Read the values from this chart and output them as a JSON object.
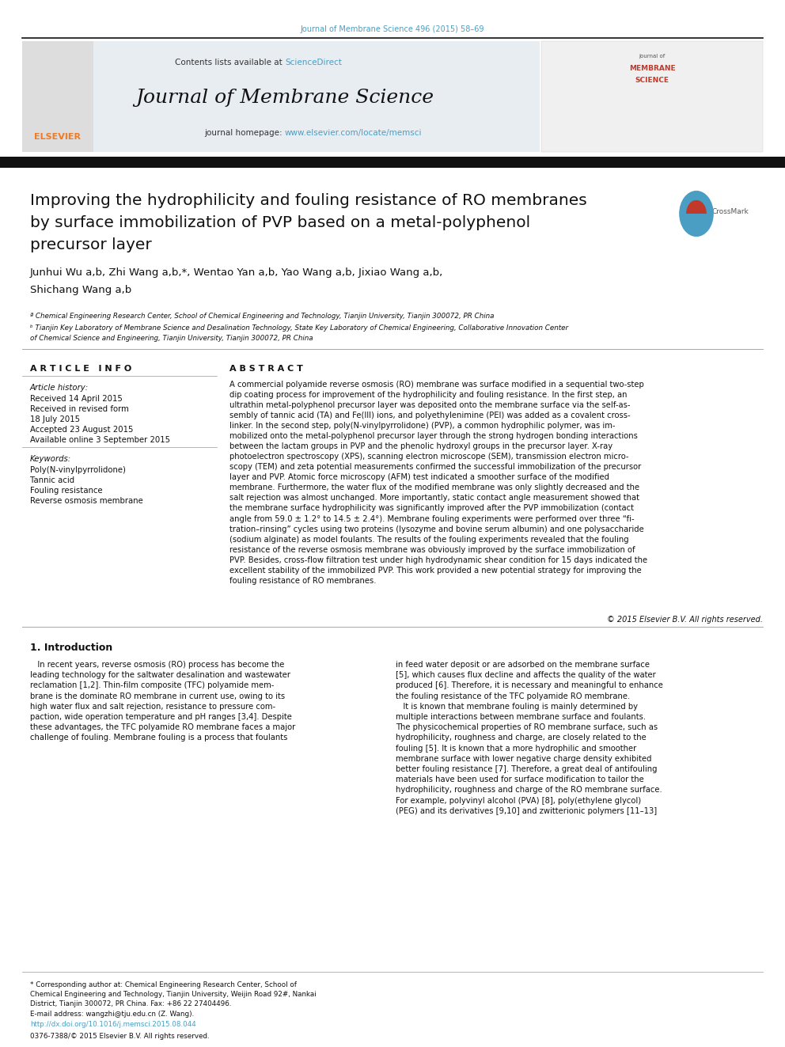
{
  "page_width": 9.92,
  "page_height": 13.23,
  "bg_color": "#ffffff",
  "top_citation": "Journal of Membrane Science 496 (2015) 58–69",
  "top_citation_color": "#4a9ec4",
  "header_bg": "#e8edf2",
  "header_journal_name": "Journal of Membrane Science",
  "contents_text": "Contents lists available at ",
  "science_direct": "ScienceDirect",
  "journal_homepage": "journal homepage: ",
  "homepage_url": "www.elsevier.com/locate/memsci",
  "link_color": "#4a9ec4",
  "title_line1": "Improving the hydrophilicity and fouling resistance of RO membranes",
  "title_line2": "by surface immobilization of PVP based on a metal-polyphenol",
  "title_line3": "precursor layer",
  "title_font_size": 14.5,
  "authors_line1": "Junhui Wu a,b, Zhi Wang a,b,*, Wentao Yan a,b, Yao Wang a,b, Jixiao Wang a,b,",
  "authors_line2": "Shichang Wang a,b",
  "affil_a": "ª Chemical Engineering Research Center, School of Chemical Engineering and Technology, Tianjin University, Tianjin 300072, PR China",
  "affil_b": "ᵇ Tianjin Key Laboratory of Membrane Science and Desalination Technology, State Key Laboratory of Chemical Engineering, Collaborative Innovation Center",
  "affil_b2": "of Chemical Science and Engineering, Tianjin University, Tianjin 300072, PR China",
  "article_info_header": "A R T I C L E   I N F O",
  "abstract_header": "A B S T R A C T",
  "article_history_label": "Article history:",
  "received1": "Received 14 April 2015",
  "received2": "Received in revised form",
  "received2b": "18 July 2015",
  "accepted": "Accepted 23 August 2015",
  "available": "Available online 3 September 2015",
  "keywords_label": "Keywords:",
  "kw1": "Poly(N-vinylpyrrolidone)",
  "kw2": "Tannic acid",
  "kw3": "Fouling resistance",
  "kw4": "Reverse osmosis membrane",
  "abstract_text": "A commercial polyamide reverse osmosis (RO) membrane was surface modified in a sequential two-step\ndip coating process for improvement of the hydrophilicity and fouling resistance. In the first step, an\nultrathin metal-polyphenol precursor layer was deposited onto the membrane surface via the self-as-\nsembly of tannic acid (TA) and Fe(III) ions, and polyethylenimine (PEI) was added as a covalent cross-\nlinker. In the second step, poly(N-vinylpyrrolidone) (PVP), a common hydrophilic polymer, was im-\nmobilized onto the metal-polyphenol precursor layer through the strong hydrogen bonding interactions\nbetween the lactam groups in PVP and the phenolic hydroxyl groups in the precursor layer. X-ray\nphotoelectron spectroscopy (XPS), scanning electron microscope (SEM), transmission electron micro-\nscopy (TEM) and zeta potential measurements confirmed the successful immobilization of the precursor\nlayer and PVP. Atomic force microscopy (AFM) test indicated a smoother surface of the modified\nmembrane. Furthermore, the water flux of the modified membrane was only slightly decreased and the\nsalt rejection was almost unchanged. More importantly, static contact angle measurement showed that\nthe membrane surface hydrophilicity was significantly improved after the PVP immobilization (contact\nangle from 59.0 ± 1.2° to 14.5 ± 2.4°). Membrane fouling experiments were performed over three “fi-\ntration–rinsing” cycles using two proteins (lysozyme and bovine serum albumin) and one polysaccharide\n(sodium alginate) as model foulants. The results of the fouling experiments revealed that the fouling\nresistance of the reverse osmosis membrane was obviously improved by the surface immobilization of\nPVP. Besides, cross-flow filtration test under high hydrodynamic shear condition for 15 days indicated the\nexcellent stability of the immobilized PVP. This work provided a new potential strategy for improving the\nfouling resistance of RO membranes.",
  "copyright_text": "© 2015 Elsevier B.V. All rights reserved.",
  "intro_header": "1. Introduction",
  "intro_col1_lines": [
    "   In recent years, reverse osmosis (RO) process has become the",
    "leading technology for the saltwater desalination and wastewater",
    "reclamation [1,2]. Thin-film composite (TFC) polyamide mem-",
    "brane is the dominate RO membrane in current use, owing to its",
    "high water flux and salt rejection, resistance to pressure com-",
    "paction, wide operation temperature and pH ranges [3,4]. Despite",
    "these advantages, the TFC polyamide RO membrane faces a major",
    "challenge of fouling. Membrane fouling is a process that foulants"
  ],
  "intro_col2_lines": [
    "in feed water deposit or are adsorbed on the membrane surface",
    "[5], which causes flux decline and affects the quality of the water",
    "produced [6]. Therefore, it is necessary and meaningful to enhance",
    "the fouling resistance of the TFC polyamide RO membrane.",
    "   It is known that membrane fouling is mainly determined by",
    "multiple interactions between membrane surface and foulants.",
    "The physicochemical properties of RO membrane surface, such as",
    "hydrophilicity, roughness and charge, are closely related to the",
    "fouling [5]. It is known that a more hydrophilic and smoother",
    "membrane surface with lower negative charge density exhibited",
    "better fouling resistance [7]. Therefore, a great deal of antifouling",
    "materials have been used for surface modification to tailor the",
    "hydrophilicity, roughness and charge of the RO membrane surface.",
    "For example, polyvinyl alcohol (PVA) [8], poly(ethylene glycol)",
    "(PEG) and its derivatives [9,10] and zwitterionic polymers [11–13]"
  ],
  "footnote_star_line1": "* Corresponding author at: Chemical Engineering Research Center, School of",
  "footnote_star_line2": "Chemical Engineering and Technology, Tianjin University, Weijin Road 92#, Nankai",
  "footnote_star_line3": "District, Tianjin 300072, PR China. Fax: +86 22 27404496.",
  "footnote_email": "E-mail address: wangzhi@tju.edu.cn (Z. Wang).",
  "footnote_doi": "http://dx.doi.org/10.1016/j.memsci.2015.08.044",
  "footnote_issn": "0376-7388/© 2015 Elsevier B.V. All rights reserved.",
  "elsevier_orange": "#f47920",
  "journal_red": "#c0392b",
  "divider_dark": "#111111",
  "divider_light": "#999999",
  "crossmark_blue": "#4a9ec4",
  "crossmark_red": "#c0392b"
}
